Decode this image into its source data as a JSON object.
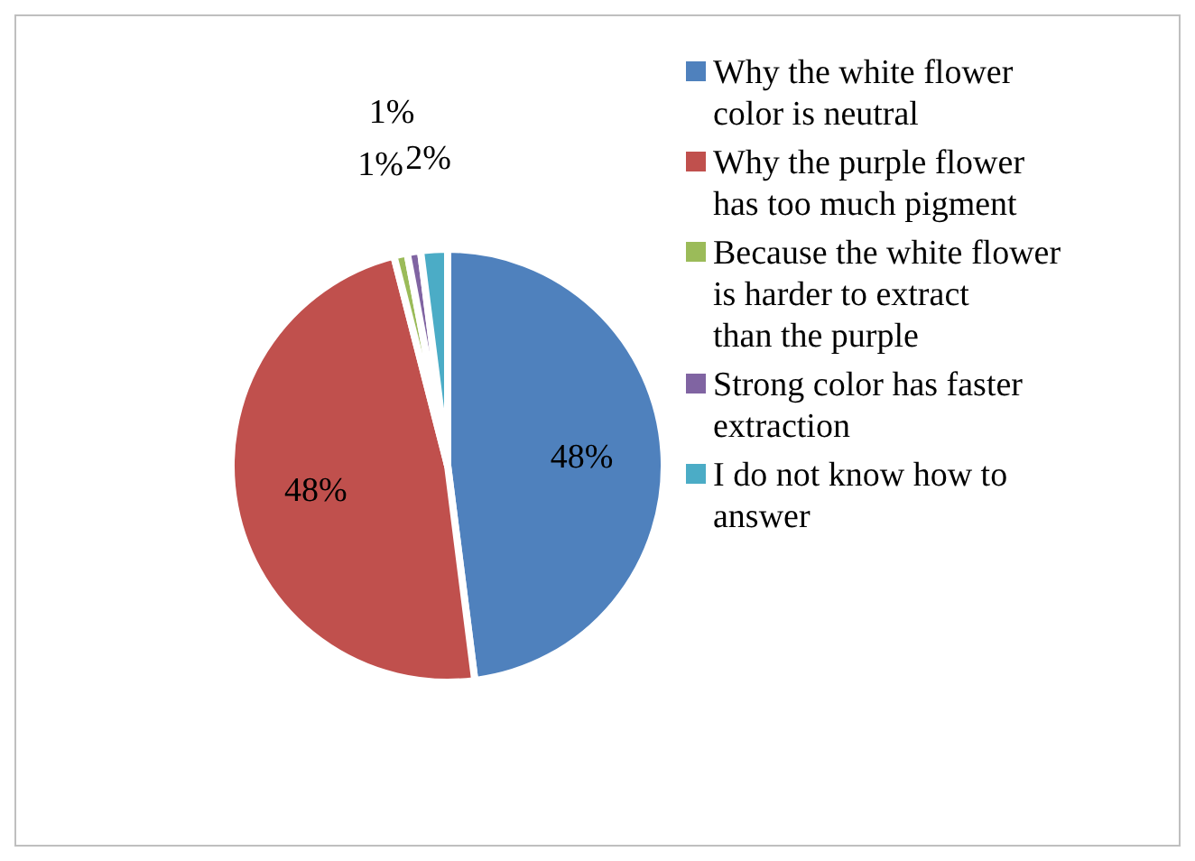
{
  "chart_data": {
    "type": "pie",
    "categories": [
      "Why the white flower color is neutral",
      "Why the purple flower has too much pigment",
      "Because the white flower is harder to extract than the purple",
      "Strong color has faster extraction",
      "I do not know how to answer"
    ],
    "values": [
      48,
      48,
      1,
      1,
      2
    ],
    "colors": [
      "#4f81bd",
      "#c0504d",
      "#9bbb59",
      "#8064a2",
      "#4bacc6"
    ],
    "value_labels": [
      "48%",
      "48%",
      "1%",
      "1%",
      "2%"
    ],
    "legend": "right"
  }
}
